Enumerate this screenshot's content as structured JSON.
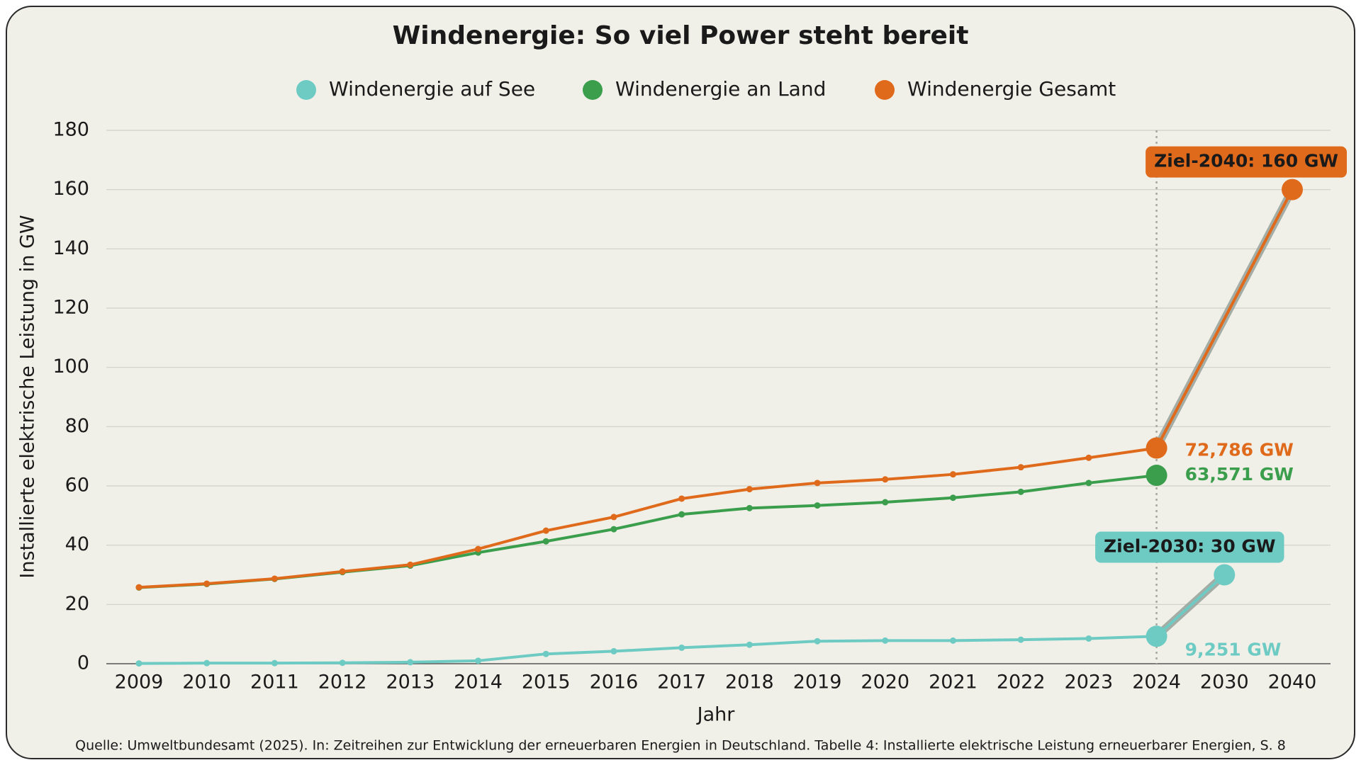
{
  "chart_data": {
    "type": "line",
    "title": "Windenergie: So viel Power steht bereit",
    "x_label": "Jahr",
    "y_label": "Installierte elektrische Leistung in GW",
    "source": "Quelle: Umweltbundesamt (2025). In: Zeitreihen zur Entwicklung der erneuerbaren Energien in Deutschland. Tabelle 4: Installierte elektrische Leistung erneuerbarer Energien, S. 8",
    "categories": [
      "2009",
      "2010",
      "2011",
      "2012",
      "2013",
      "2014",
      "2015",
      "2016",
      "2017",
      "2018",
      "2019",
      "2020",
      "2021",
      "2022",
      "2023",
      "2024",
      "2030",
      "2040"
    ],
    "reference_line_x": "2024",
    "series": [
      {
        "name": "Windenergie auf See",
        "color": "#6ecbc4",
        "values": [
          0.1,
          0.2,
          0.2,
          0.3,
          0.5,
          1.0,
          3.3,
          4.2,
          5.4,
          6.4,
          7.6,
          7.8,
          7.8,
          8.1,
          8.5,
          9.251,
          30,
          null
        ],
        "value_labels": [
          null,
          null,
          null,
          null,
          null,
          null,
          null,
          null,
          null,
          null,
          null,
          null,
          null,
          null,
          null,
          "9,251 GW",
          "Ziel-2030: 30 GW",
          null
        ]
      },
      {
        "name": "Windenergie an Land",
        "color": "#3a9e4c",
        "values": [
          25.7,
          26.9,
          28.6,
          30.9,
          33.1,
          37.5,
          41.3,
          45.4,
          50.4,
          52.5,
          53.4,
          54.5,
          56.0,
          58.0,
          61.0,
          63.571,
          null,
          null
        ],
        "value_labels": [
          null,
          null,
          null,
          null,
          null,
          null,
          null,
          null,
          null,
          null,
          null,
          null,
          null,
          null,
          null,
          "63,571 GW",
          null,
          null
        ]
      },
      {
        "name": "Windenergie Gesamt",
        "color": "#e06a1b",
        "values": [
          25.8,
          27.0,
          28.7,
          31.1,
          33.4,
          38.7,
          44.9,
          49.5,
          55.7,
          58.9,
          61.0,
          62.2,
          63.9,
          66.3,
          69.5,
          72.786,
          null,
          160
        ],
        "value_labels": [
          null,
          null,
          null,
          null,
          null,
          null,
          null,
          null,
          null,
          null,
          null,
          null,
          null,
          null,
          null,
          "72,786 GW",
          null,
          "Ziel-2040: 160 GW"
        ]
      }
    ],
    "ylim": [
      0,
      180
    ],
    "yticks": [
      0,
      20,
      40,
      60,
      80,
      100,
      120,
      140,
      160,
      180
    ],
    "grid": true
  }
}
